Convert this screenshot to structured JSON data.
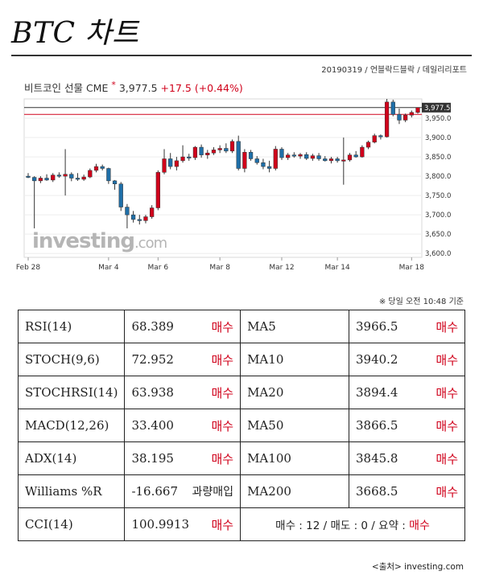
{
  "page": {
    "title": "BTC 차트",
    "byline": "20190319 / 언블락드블락 / 데일리리포트"
  },
  "header": {
    "instrument": "비트코인 선물 CME",
    "star": "*",
    "price": "3,977.5",
    "change": "+17.5",
    "change_pct": "(+0.44%)"
  },
  "colors": {
    "up": "#d0021b",
    "down": "#1f6fa8",
    "accent_red": "#d0021b"
  },
  "chart_data": {
    "type": "candlestick",
    "watermark": "investing.com",
    "y_ticks": [
      "3,950.0",
      "3,900.0",
      "3,850.0",
      "3,800.0",
      "3,750.0",
      "3,700.0",
      "3,650.0",
      "3,600.0"
    ],
    "y_tick_values": [
      3950,
      3900,
      3850,
      3800,
      3750,
      3700,
      3650,
      3600
    ],
    "ylim": [
      3590,
      4000
    ],
    "x_labels": [
      "Feb 28",
      "Mar 4",
      "Mar 6",
      "Mar 8",
      "Mar 12",
      "Mar 14",
      "Mar 18"
    ],
    "x_label_index": [
      0,
      13,
      21,
      31,
      41,
      50,
      62
    ],
    "last_price_label": "3,977.5",
    "last_price": 3977.5,
    "reference_line": 3960,
    "candles": [
      [
        3800,
        3808,
        3795,
        3797
      ],
      [
        3797,
        3800,
        3665,
        3788
      ],
      [
        3788,
        3800,
        3782,
        3795
      ],
      [
        3795,
        3805,
        3788,
        3790
      ],
      [
        3790,
        3808,
        3785,
        3803
      ],
      [
        3803,
        3810,
        3796,
        3800
      ],
      [
        3800,
        3870,
        3750,
        3805
      ],
      [
        3805,
        3810,
        3787,
        3795
      ],
      [
        3795,
        3808,
        3788,
        3792
      ],
      [
        3792,
        3804,
        3788,
        3798
      ],
      [
        3798,
        3820,
        3795,
        3815
      ],
      [
        3815,
        3832,
        3810,
        3825
      ],
      [
        3825,
        3830,
        3815,
        3820
      ],
      [
        3820,
        3822,
        3780,
        3788
      ],
      [
        3788,
        3790,
        3765,
        3780
      ],
      [
        3780,
        3785,
        3710,
        3720
      ],
      [
        3720,
        3728,
        3665,
        3700
      ],
      [
        3700,
        3710,
        3680,
        3688
      ],
      [
        3688,
        3700,
        3675,
        3685
      ],
      [
        3685,
        3700,
        3678,
        3695
      ],
      [
        3695,
        3725,
        3690,
        3718
      ],
      [
        3718,
        3815,
        3712,
        3810
      ],
      [
        3810,
        3870,
        3805,
        3845
      ],
      [
        3845,
        3860,
        3818,
        3825
      ],
      [
        3825,
        3850,
        3815,
        3840
      ],
      [
        3840,
        3880,
        3835,
        3850
      ],
      [
        3850,
        3858,
        3840,
        3848
      ],
      [
        3848,
        3878,
        3842,
        3875
      ],
      [
        3875,
        3882,
        3848,
        3855
      ],
      [
        3855,
        3868,
        3845,
        3860
      ],
      [
        3860,
        3875,
        3855,
        3868
      ],
      [
        3868,
        3880,
        3860,
        3872
      ],
      [
        3872,
        3885,
        3860,
        3865
      ],
      [
        3865,
        3895,
        3860,
        3890
      ],
      [
        3890,
        3905,
        3815,
        3820
      ],
      [
        3820,
        3870,
        3810,
        3862
      ],
      [
        3862,
        3868,
        3840,
        3845
      ],
      [
        3845,
        3852,
        3830,
        3835
      ],
      [
        3835,
        3845,
        3818,
        3825
      ],
      [
        3825,
        3840,
        3810,
        3820
      ],
      [
        3820,
        3878,
        3815,
        3870
      ],
      [
        3870,
        3875,
        3842,
        3848
      ],
      [
        3848,
        3860,
        3842,
        3855
      ],
      [
        3855,
        3862,
        3848,
        3852
      ],
      [
        3852,
        3860,
        3845,
        3856
      ],
      [
        3856,
        3862,
        3842,
        3846
      ],
      [
        3846,
        3858,
        3840,
        3853
      ],
      [
        3853,
        3860,
        3840,
        3845
      ],
      [
        3845,
        3852,
        3838,
        3840
      ],
      [
        3840,
        3850,
        3833,
        3845
      ],
      [
        3845,
        3850,
        3835,
        3840
      ],
      [
        3840,
        3900,
        3778,
        3842
      ],
      [
        3842,
        3860,
        3838,
        3855
      ],
      [
        3855,
        3865,
        3848,
        3850
      ],
      [
        3850,
        3880,
        3848,
        3875
      ],
      [
        3875,
        3892,
        3870,
        3888
      ],
      [
        3888,
        3910,
        3885,
        3905
      ],
      [
        3905,
        3908,
        3895,
        3902
      ],
      [
        3902,
        4000,
        3900,
        3992
      ],
      [
        3992,
        3998,
        3955,
        3960
      ],
      [
        3960,
        3975,
        3935,
        3945
      ],
      [
        3945,
        3962,
        3940,
        3958
      ],
      [
        3958,
        3970,
        3952,
        3965
      ],
      [
        3965,
        3978,
        3962,
        3977.5
      ]
    ]
  },
  "as_of_note": "※ 당일 오전 10:48 기준",
  "table": {
    "rows": [
      {
        "ind": "RSI(14)",
        "val": "68.389",
        "sig": "매수",
        "ma": "MA5",
        "ma_val": "3966.5",
        "ma_sig": "매수"
      },
      {
        "ind": "STOCH(9,6)",
        "val": "72.952",
        "sig": "매수",
        "ma": "MA10",
        "ma_val": "3940.2",
        "ma_sig": "매수"
      },
      {
        "ind": "STOCHRSI(14)",
        "val": "63.938",
        "sig": "매수",
        "ma": "MA20",
        "ma_val": "3894.4",
        "ma_sig": "매수"
      },
      {
        "ind": "MACD(12,26)",
        "val": "33.400",
        "sig": "매수",
        "ma": "MA50",
        "ma_val": "3866.5",
        "ma_sig": "매수"
      },
      {
        "ind": "ADX(14)",
        "val": "38.195",
        "sig": "매수",
        "ma": "MA100",
        "ma_val": "3845.8",
        "ma_sig": "매수"
      },
      {
        "ind": "Williams %R",
        "val": "-16.667",
        "sig": "과량매입",
        "ma": "MA200",
        "ma_val": "3668.5",
        "ma_sig": "매수"
      }
    ],
    "last_row": {
      "ind": "CCI(14)",
      "val": "100.9913",
      "sig": "매수",
      "summary_prefix": "매수 : 12 / 매도 : 0 / 요약 : ",
      "summary_signal": "매수"
    }
  },
  "source": "<출처> investing.com"
}
